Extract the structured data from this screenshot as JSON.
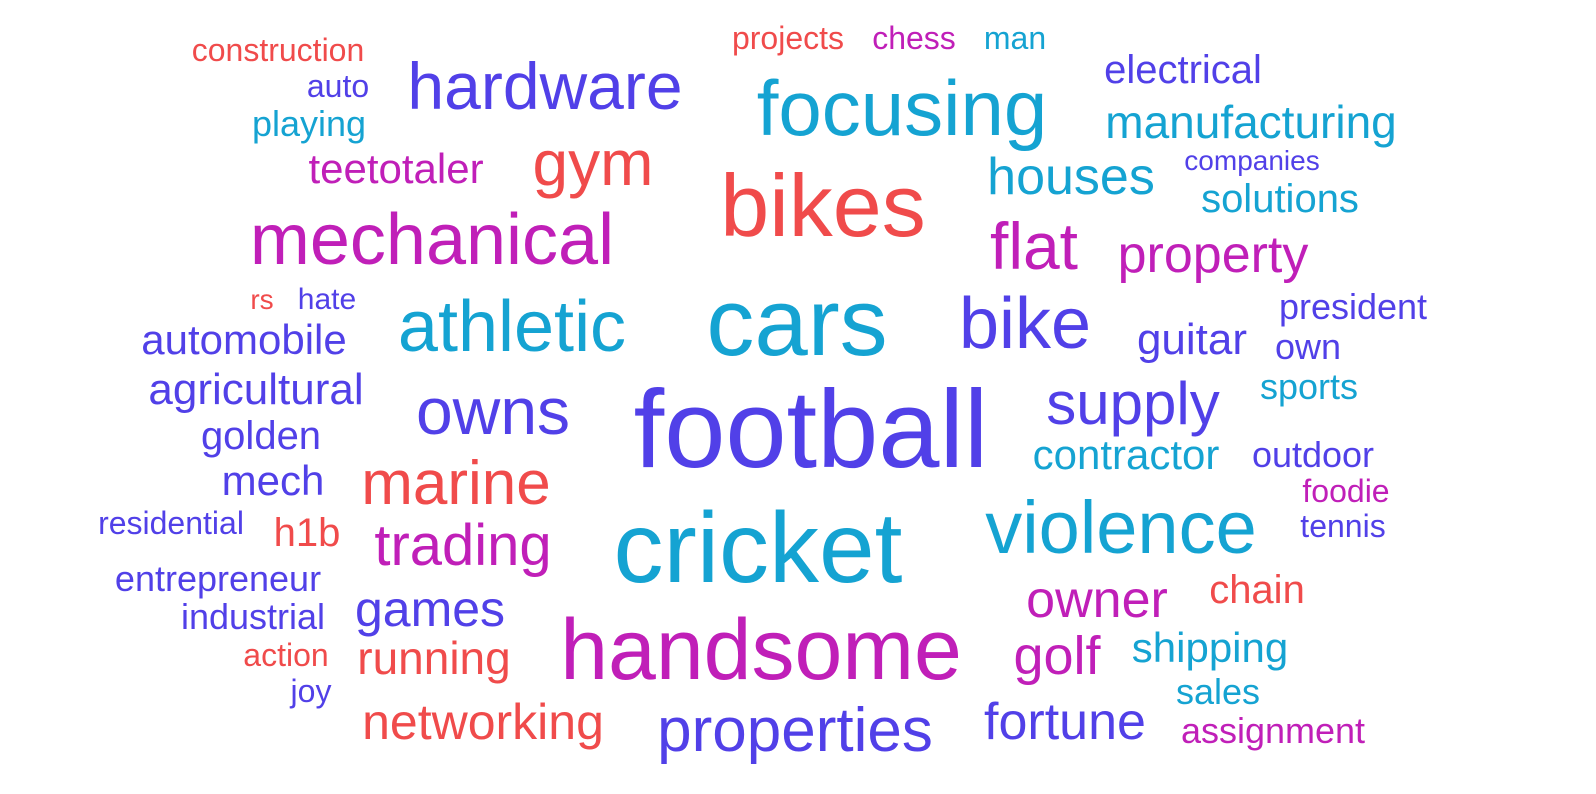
{
  "palette": {
    "red": "#f04b4b",
    "magenta": "#c01fb8",
    "violet": "#5140e8",
    "cyan": "#15a3d2"
  },
  "words": [
    {
      "text": "construction",
      "color": "red"
    },
    {
      "text": "projects",
      "color": "red"
    },
    {
      "text": "chess",
      "color": "magenta"
    },
    {
      "text": "man",
      "color": "cyan"
    },
    {
      "text": "auto",
      "color": "violet"
    },
    {
      "text": "hardware",
      "color": "violet"
    },
    {
      "text": "electrical",
      "color": "violet"
    },
    {
      "text": "focusing",
      "color": "cyan"
    },
    {
      "text": "playing",
      "color": "cyan"
    },
    {
      "text": "manufacturing",
      "color": "cyan"
    },
    {
      "text": "gym",
      "color": "red"
    },
    {
      "text": "teetotaler",
      "color": "magenta"
    },
    {
      "text": "companies",
      "color": "violet"
    },
    {
      "text": "houses",
      "color": "cyan"
    },
    {
      "text": "bikes",
      "color": "red"
    },
    {
      "text": "solutions",
      "color": "cyan"
    },
    {
      "text": "mechanical",
      "color": "magenta"
    },
    {
      "text": "flat",
      "color": "magenta"
    },
    {
      "text": "property",
      "color": "magenta"
    },
    {
      "text": "rs",
      "color": "red"
    },
    {
      "text": "hate",
      "color": "violet"
    },
    {
      "text": "president",
      "color": "violet"
    },
    {
      "text": "athletic",
      "color": "cyan"
    },
    {
      "text": "cars",
      "color": "cyan"
    },
    {
      "text": "bike",
      "color": "violet"
    },
    {
      "text": "automobile",
      "color": "violet"
    },
    {
      "text": "guitar",
      "color": "violet"
    },
    {
      "text": "own",
      "color": "violet"
    },
    {
      "text": "agricultural",
      "color": "violet"
    },
    {
      "text": "sports",
      "color": "cyan"
    },
    {
      "text": "owns",
      "color": "violet"
    },
    {
      "text": "football",
      "color": "violet"
    },
    {
      "text": "supply",
      "color": "violet"
    },
    {
      "text": "golden",
      "color": "violet"
    },
    {
      "text": "contractor",
      "color": "cyan"
    },
    {
      "text": "outdoor",
      "color": "violet"
    },
    {
      "text": "mech",
      "color": "violet"
    },
    {
      "text": "marine",
      "color": "red"
    },
    {
      "text": "foodie",
      "color": "magenta"
    },
    {
      "text": "residential",
      "color": "violet"
    },
    {
      "text": "h1b",
      "color": "red"
    },
    {
      "text": "violence",
      "color": "cyan"
    },
    {
      "text": "tennis",
      "color": "violet"
    },
    {
      "text": "trading",
      "color": "magenta"
    },
    {
      "text": "cricket",
      "color": "cyan"
    },
    {
      "text": "entrepreneur",
      "color": "violet"
    },
    {
      "text": "chain",
      "color": "red"
    },
    {
      "text": "owner",
      "color": "magenta"
    },
    {
      "text": "games",
      "color": "violet"
    },
    {
      "text": "industrial",
      "color": "violet"
    },
    {
      "text": "shipping",
      "color": "cyan"
    },
    {
      "text": "handsome",
      "color": "magenta"
    },
    {
      "text": "action",
      "color": "red"
    },
    {
      "text": "running",
      "color": "red"
    },
    {
      "text": "golf",
      "color": "magenta"
    },
    {
      "text": "joy",
      "color": "violet"
    },
    {
      "text": "sales",
      "color": "cyan"
    },
    {
      "text": "networking",
      "color": "red"
    },
    {
      "text": "fortune",
      "color": "violet"
    },
    {
      "text": "properties",
      "color": "violet"
    },
    {
      "text": "assignment",
      "color": "magenta"
    }
  ]
}
